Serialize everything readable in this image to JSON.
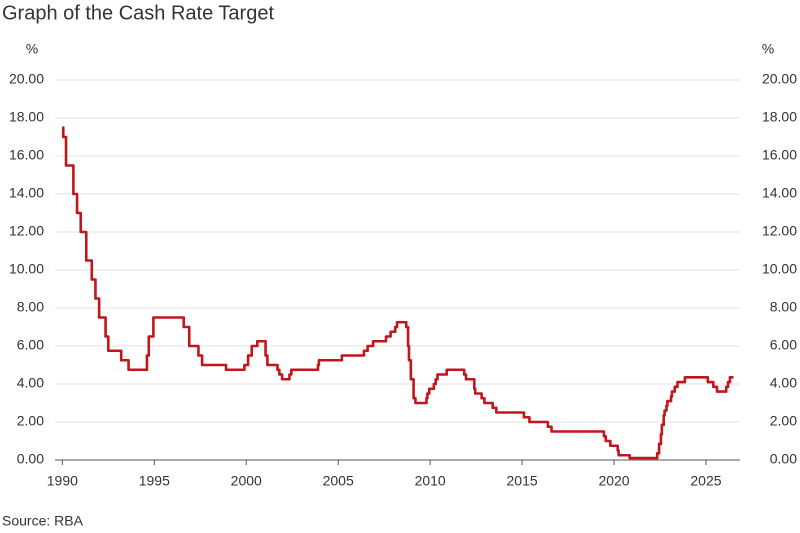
{
  "chart_data": {
    "type": "line",
    "step": "post",
    "title": "Graph of the Cash Rate Target",
    "y_label": "%",
    "y2_label": "%",
    "source": "Source: RBA",
    "xlim": [
      1989.6,
      2026.85
    ],
    "xticks": [
      1990,
      1995,
      2000,
      2005,
      2010,
      2015,
      2020,
      2025
    ],
    "ylim": [
      0,
      20
    ],
    "yticks": [
      {
        "value": 0,
        "label": "0.00"
      },
      {
        "value": 2,
        "label": "2.00"
      },
      {
        "value": 4,
        "label": "4.00"
      },
      {
        "value": 6,
        "label": "6.00"
      },
      {
        "value": 8,
        "label": "8.00"
      },
      {
        "value": 10,
        "label": "10.00"
      },
      {
        "value": 12,
        "label": "12.00"
      },
      {
        "value": 14,
        "label": "14.00"
      },
      {
        "value": 16,
        "label": "16.00"
      },
      {
        "value": 18,
        "label": "18.00"
      },
      {
        "value": 20,
        "label": "20.00"
      }
    ],
    "y2lim": [
      0,
      20
    ],
    "y2ticks": [
      {
        "value": 0,
        "label": "0.00"
      },
      {
        "value": 2,
        "label": "2.00"
      },
      {
        "value": 4,
        "label": "4.00"
      },
      {
        "value": 6,
        "label": "6.00"
      },
      {
        "value": 8,
        "label": "8.00"
      },
      {
        "value": 10,
        "label": "10.00"
      },
      {
        "value": 12,
        "label": "12.00"
      },
      {
        "value": 14,
        "label": "14.00"
      },
      {
        "value": 16,
        "label": "16.00"
      },
      {
        "value": 18,
        "label": "18.00"
      },
      {
        "value": 20,
        "label": "20.00"
      }
    ],
    "grid": true,
    "x": [
      1990.0,
      1990.05,
      1990.2,
      1990.6,
      1990.8,
      1991.0,
      1991.3,
      1991.6,
      1991.8,
      1992.0,
      1992.35,
      1992.5,
      1993.2,
      1993.6,
      1994.6,
      1994.7,
      1994.95,
      1996.6,
      1996.9,
      1997.4,
      1997.6,
      1998.9,
      1999.9,
      2000.1,
      2000.3,
      2000.6,
      2001.05,
      2001.15,
      2001.7,
      2001.8,
      2001.95,
      2002.35,
      2002.45,
      2003.9,
      2003.95,
      2005.2,
      2006.4,
      2006.6,
      2006.9,
      2007.6,
      2007.85,
      2008.1,
      2008.2,
      2008.7,
      2008.8,
      2008.85,
      2008.95,
      2009.1,
      2009.2,
      2009.8,
      2009.85,
      2009.95,
      2010.2,
      2010.3,
      2010.4,
      2010.9,
      2011.85,
      2011.95,
      2012.4,
      2012.45,
      2012.8,
      2012.95,
      2013.4,
      2013.6,
      2015.1,
      2015.4,
      2016.4,
      2016.6,
      2019.45,
      2019.55,
      2019.8,
      2020.2,
      2020.25,
      2020.85,
      2022.35,
      2022.45,
      2022.55,
      2022.6,
      2022.7,
      2022.75,
      2022.85,
      2022.9,
      2023.1,
      2023.15,
      2023.3,
      2023.45,
      2023.85,
      2025.1,
      2025.4,
      2025.6,
      2026.1,
      2026.2,
      2026.3,
      2026.5
    ],
    "series": [
      {
        "name": "Cash Rate Target",
        "color": "#c0161d",
        "values": [
          17.5,
          17.0,
          15.5,
          14.0,
          13.0,
          12.0,
          10.5,
          9.5,
          8.5,
          7.5,
          6.5,
          5.75,
          5.25,
          4.75,
          5.5,
          6.5,
          7.5,
          7.0,
          6.0,
          5.5,
          5.0,
          4.75,
          5.0,
          5.5,
          6.0,
          6.25,
          5.5,
          5.0,
          4.75,
          4.5,
          4.25,
          4.5,
          4.75,
          5.0,
          5.25,
          5.5,
          5.75,
          6.0,
          6.25,
          6.5,
          6.75,
          7.0,
          7.25,
          7.0,
          6.0,
          5.25,
          4.25,
          3.25,
          3.0,
          3.25,
          3.5,
          3.75,
          4.0,
          4.25,
          4.5,
          4.75,
          4.5,
          4.25,
          3.75,
          3.5,
          3.25,
          3.0,
          2.75,
          2.5,
          2.25,
          2.0,
          1.75,
          1.5,
          1.25,
          1.0,
          0.75,
          0.5,
          0.25,
          0.1,
          0.35,
          0.85,
          1.35,
          1.85,
          2.35,
          2.6,
          2.85,
          3.1,
          3.35,
          3.6,
          3.85,
          4.1,
          4.35,
          4.1,
          3.85,
          3.6,
          3.85,
          4.1,
          4.35,
          4.35
        ]
      }
    ]
  }
}
